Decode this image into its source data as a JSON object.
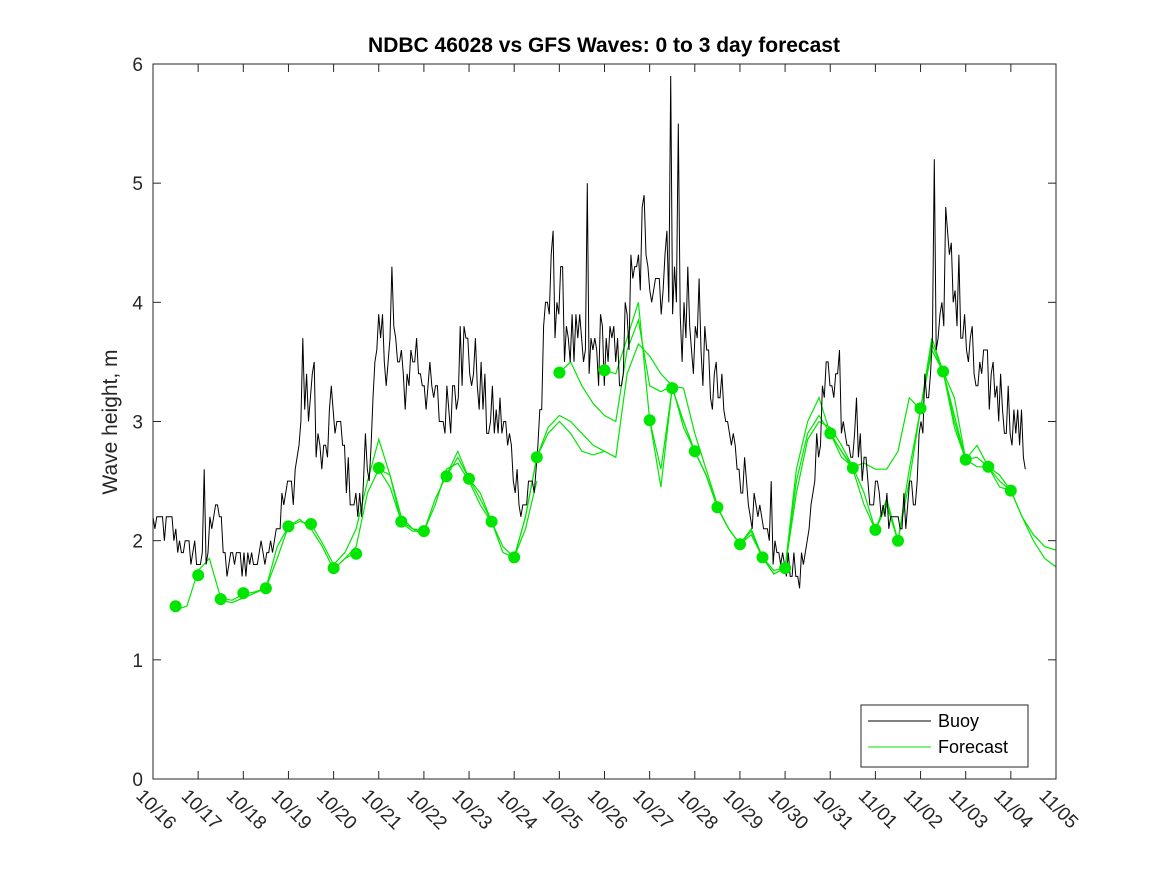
{
  "chart_data": {
    "type": "line",
    "title": "NDBC 46028 vs GFS Waves: 0 to 3 day forecast",
    "xlabel": "",
    "ylabel": "Wave height, m",
    "ylim": [
      0,
      6
    ],
    "xlim": [
      0,
      20
    ],
    "yticks": [
      "0",
      "1",
      "2",
      "3",
      "4",
      "5",
      "6"
    ],
    "xticks": [
      "10/16",
      "10/17",
      "10/18",
      "10/19",
      "10/20",
      "10/21",
      "10/22",
      "10/23",
      "10/24",
      "10/25",
      "10/26",
      "10/27",
      "10/28",
      "10/29",
      "10/30",
      "10/31",
      "11/01",
      "11/02",
      "11/03",
      "11/04",
      "11/05"
    ],
    "legend": {
      "position": "bottom-right",
      "entries": [
        "Buoy",
        "Forecast"
      ]
    },
    "colors": {
      "buoy": "#000000",
      "forecast": "#00e600"
    },
    "buoy_anchors": {
      "x": [
        0,
        0.1,
        0.4,
        0.6,
        0.9,
        1.15,
        1.4,
        1.6,
        1.9,
        2.2,
        2.5,
        2.8,
        3.1,
        3.3,
        3.5,
        3.75,
        4.0,
        4.3,
        4.55,
        4.7,
        4.85,
        5.0,
        5.3,
        5.55,
        5.8,
        6.1,
        6.4,
        6.65,
        6.9,
        7.2,
        7.45,
        7.75,
        8.0,
        8.2,
        8.45,
        8.6,
        8.75,
        8.9,
        9.1,
        9.3,
        9.6,
        9.8,
        10.1,
        10.3,
        10.6,
        10.9,
        11.2,
        11.4,
        11.7,
        11.9,
        12.1,
        12.3,
        12.55,
        12.8,
        13.05,
        13.25,
        13.5,
        13.7,
        13.9,
        14.1,
        14.3,
        14.5,
        14.7,
        14.9,
        15.05,
        15.3,
        15.6,
        15.8,
        16.0,
        16.15,
        16.3,
        16.5,
        16.7,
        16.9,
        17.05,
        17.2,
        17.4,
        17.55,
        17.8,
        18.0,
        18.3,
        18.6,
        18.9,
        19.2,
        19.35
      ],
      "y": [
        2.2,
        2.1,
        2.1,
        2.0,
        1.9,
        1.8,
        2.4,
        1.8,
        1.85,
        1.85,
        1.9,
        2.2,
        2.5,
        3.0,
        3.2,
        2.6,
        3.1,
        2.6,
        2.2,
        2.4,
        3.0,
        3.6,
        3.7,
        3.3,
        3.6,
        3.3,
        3.0,
        3.3,
        3.6,
        3.4,
        3.0,
        3.0,
        2.6,
        2.3,
        2.5,
        3.2,
        4.0,
        4.1,
        3.9,
        3.6,
        3.5,
        3.6,
        3.6,
        3.4,
        3.9,
        4.6,
        4.2,
        4.3,
        3.8,
        3.7,
        3.7,
        3.4,
        3.2,
        2.8,
        2.6,
        2.3,
        2.1,
        1.95,
        1.85,
        1.8,
        1.7,
        1.9,
        2.8,
        3.3,
        3.5,
        3.1,
        2.7,
        2.6,
        2.4,
        2.25,
        2.3,
        2.2,
        2.3,
        2.5,
        3.0,
        3.5,
        3.7,
        4.3,
        4.1,
        3.6,
        3.3,
        3.4,
        3.1,
        2.9,
        2.7
      ]
    },
    "buoy_spikes": {
      "x": [
        1.15,
        3.3,
        3.55,
        4.7,
        5.3,
        6.8,
        8.85,
        9.6,
        10.6,
        10.9,
        11.45,
        11.65,
        11.85,
        12.1,
        13.7,
        15.2,
        15.6,
        17.3,
        17.55,
        17.85
      ],
      "y": [
        2.6,
        3.7,
        3.5,
        2.9,
        4.3,
        3.8,
        4.6,
        5.0,
        4.4,
        4.4,
        5.9,
        5.5,
        4.3,
        4.2,
        2.5,
        3.6,
        3.2,
        5.2,
        4.8,
        4.4
      ]
    },
    "forecast_runs": [
      {
        "x": [
          0.5,
          0.75,
          1.0,
          1.25,
          1.5,
          1.75,
          2.0,
          2.25,
          2.5,
          2.75,
          3.0
        ],
        "y": [
          1.42,
          1.45,
          1.75,
          1.85,
          1.52,
          1.5,
          1.55,
          1.57,
          1.6,
          1.85,
          2.12
        ]
      },
      {
        "x": [
          1.5,
          1.75,
          2.0,
          2.25,
          2.5,
          2.75,
          3.0,
          3.25,
          3.5,
          3.75,
          4.0,
          4.25,
          4.5
        ],
        "y": [
          1.5,
          1.48,
          1.52,
          1.56,
          1.6,
          1.95,
          2.12,
          2.18,
          2.1,
          1.95,
          1.76,
          1.85,
          1.9
        ]
      },
      {
        "x": [
          3.0,
          3.25,
          3.5,
          3.75,
          4.0,
          4.25,
          4.5,
          4.75,
          5.0,
          5.25,
          5.5,
          5.75,
          6.0
        ],
        "y": [
          2.12,
          2.16,
          2.14,
          1.98,
          1.8,
          1.9,
          2.1,
          2.5,
          2.85,
          2.55,
          2.2,
          2.1,
          2.05
        ]
      },
      {
        "x": [
          4.0,
          4.25,
          4.5,
          4.75,
          5.0,
          5.25,
          5.5,
          5.75,
          6.0,
          6.25,
          6.5,
          6.75,
          7.0,
          7.25,
          7.5
        ],
        "y": [
          1.76,
          1.85,
          1.95,
          2.4,
          2.6,
          2.55,
          2.15,
          2.08,
          2.08,
          2.3,
          2.6,
          2.65,
          2.5,
          2.3,
          2.15
        ]
      },
      {
        "x": [
          5.0,
          5.25,
          5.5,
          5.75,
          6.0,
          6.25,
          6.5,
          6.75,
          7.0,
          7.25,
          7.5,
          7.75,
          8.0,
          8.25,
          8.5
        ],
        "y": [
          2.6,
          2.45,
          2.16,
          2.1,
          2.08,
          2.35,
          2.55,
          2.75,
          2.52,
          2.4,
          2.16,
          1.95,
          1.86,
          2.1,
          2.5
        ]
      },
      {
        "x": [
          6.5,
          6.75,
          7.0,
          7.25,
          7.5,
          7.75,
          8.0,
          8.25,
          8.5,
          8.75,
          9.0,
          9.25,
          9.5,
          9.75,
          10.0
        ],
        "y": [
          2.54,
          2.7,
          2.52,
          2.35,
          2.16,
          1.9,
          1.86,
          2.2,
          2.7,
          2.95,
          3.05,
          3.0,
          2.9,
          2.8,
          2.75
        ]
      },
      {
        "x": [
          8.0,
          8.25,
          8.5,
          8.75,
          9.0,
          9.25,
          9.5,
          9.75,
          10.0,
          10.25,
          10.5,
          10.75,
          11.0,
          11.25,
          11.5,
          11.75,
          12.0
        ],
        "y": [
          1.86,
          2.2,
          2.7,
          2.9,
          3.0,
          2.9,
          2.75,
          2.72,
          2.75,
          2.7,
          3.4,
          3.65,
          3.55,
          3.4,
          3.3,
          2.95,
          2.75
        ]
      },
      {
        "x": [
          9.0,
          9.25,
          9.5,
          9.75,
          10.0,
          10.25,
          10.5,
          10.75,
          11.0,
          11.25,
          11.5,
          11.75,
          12.0,
          12.25,
          12.5
        ],
        "y": [
          3.41,
          3.5,
          3.3,
          3.15,
          3.05,
          3.0,
          3.6,
          3.85,
          3.3,
          3.25,
          3.3,
          3.28,
          2.9,
          2.6,
          2.3
        ]
      },
      {
        "x": [
          10.0,
          10.25,
          10.5,
          10.75,
          11.0,
          11.25,
          11.5,
          11.75,
          12.0,
          12.25,
          12.5,
          12.75,
          13.0
        ],
        "y": [
          3.43,
          3.4,
          3.7,
          4.0,
          3.01,
          2.6,
          3.28,
          3.0,
          2.75,
          2.55,
          2.28,
          2.1,
          1.97
        ]
      },
      {
        "x": [
          11.0,
          11.25,
          11.5,
          11.75,
          12.0,
          12.25,
          12.5,
          12.75,
          13.0,
          13.25,
          13.5,
          13.75,
          14.0
        ],
        "y": [
          3.01,
          2.45,
          3.28,
          3.0,
          2.75,
          2.55,
          2.28,
          2.1,
          1.97,
          2.05,
          1.86,
          1.75,
          1.77
        ]
      },
      {
        "x": [
          12.0,
          12.25,
          12.5,
          12.75,
          13.0,
          13.25,
          13.5,
          13.75,
          14.0,
          14.25,
          14.5,
          14.75,
          15.0,
          15.25,
          15.5
        ],
        "y": [
          2.75,
          2.55,
          2.28,
          2.1,
          1.97,
          2.1,
          1.86,
          1.72,
          1.77,
          2.4,
          2.85,
          3.0,
          2.95,
          2.8,
          2.62
        ]
      },
      {
        "x": [
          13.0,
          13.25,
          13.5,
          13.75,
          14.0,
          14.25,
          14.5,
          14.75,
          15.0,
          15.25,
          15.5,
          15.75,
          16.0,
          16.25,
          16.5
        ],
        "y": [
          1.97,
          2.08,
          1.86,
          1.72,
          1.77,
          2.5,
          2.9,
          3.05,
          2.9,
          2.75,
          2.6,
          2.3,
          2.09,
          2.3,
          2.0
        ]
      },
      {
        "x": [
          14.0,
          14.25,
          14.5,
          14.75,
          15.0,
          15.25,
          15.5,
          15.75,
          16.0,
          16.25,
          16.5,
          16.75,
          17.0,
          17.25,
          17.5,
          17.75,
          18.0
        ],
        "y": [
          1.77,
          2.6,
          3.0,
          3.2,
          2.9,
          2.7,
          2.62,
          2.65,
          2.6,
          2.6,
          2.75,
          3.2,
          3.1,
          3.6,
          3.42,
          3.2,
          2.68
        ]
      },
      {
        "x": [
          15.0,
          15.25,
          15.5,
          15.75,
          16.0,
          16.25,
          16.5,
          16.75,
          17.0,
          17.25,
          17.5,
          17.75,
          18.0,
          18.25,
          18.5,
          18.75,
          19.0
        ],
        "y": [
          2.9,
          2.75,
          2.62,
          2.4,
          2.09,
          2.3,
          2.0,
          2.5,
          3.1,
          3.7,
          3.42,
          3.05,
          2.68,
          2.7,
          2.62,
          2.55,
          2.42
        ]
      },
      {
        "x": [
          16.0,
          16.25,
          16.5,
          16.75,
          17.0,
          17.25,
          17.5,
          17.75,
          18.0,
          18.25,
          18.5,
          18.75,
          19.0,
          19.25,
          19.5,
          19.75,
          20.0
        ],
        "y": [
          2.09,
          2.35,
          2.0,
          2.6,
          3.1,
          3.65,
          3.42,
          3.0,
          2.68,
          2.8,
          2.62,
          2.45,
          2.42,
          2.2,
          2.05,
          1.95,
          1.92
        ]
      },
      {
        "x": [
          17.0,
          17.25,
          17.5,
          17.75,
          18.0,
          18.25,
          18.5,
          18.75,
          19.0,
          19.25,
          19.5,
          19.75,
          20.0
        ],
        "y": [
          3.1,
          3.6,
          3.42,
          2.95,
          2.68,
          2.62,
          2.62,
          2.5,
          2.42,
          2.2,
          2.0,
          1.85,
          1.78
        ]
      }
    ],
    "analysis_points": {
      "x": [
        0.5,
        1.0,
        1.5,
        2.0,
        2.5,
        3.0,
        3.5,
        4.0,
        4.5,
        5.0,
        5.5,
        6.0,
        6.5,
        7.0,
        7.5,
        8.0,
        8.5,
        9.0,
        10.0,
        11.0,
        11.5,
        12.0,
        12.5,
        13.0,
        13.5,
        14.0,
        15.0,
        15.5,
        16.0,
        16.5,
        17.0,
        17.5,
        18.0,
        18.5,
        19.0
      ],
      "y": [
        1.45,
        1.71,
        1.51,
        1.56,
        1.6,
        2.12,
        2.14,
        1.77,
        1.89,
        2.61,
        2.16,
        2.08,
        2.54,
        2.52,
        2.16,
        1.86,
        2.7,
        3.41,
        3.43,
        3.01,
        3.28,
        2.75,
        2.28,
        1.97,
        1.86,
        1.77,
        2.9,
        2.61,
        2.09,
        2.0,
        3.11,
        3.42,
        2.68,
        2.62,
        2.42
      ]
    }
  }
}
